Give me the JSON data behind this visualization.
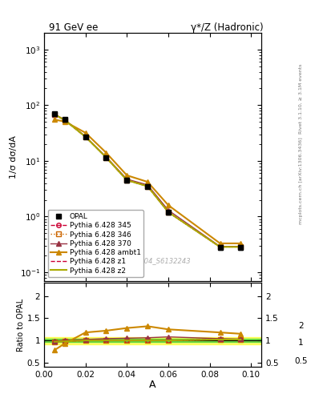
{
  "title_left": "91 GeV ee",
  "title_right": "γ*/Z (Hadronic)",
  "ylabel_main": "1/σ dσ/dA",
  "ylabel_ratio": "Ratio to OPAL",
  "xlabel": "A",
  "right_label_top": "Rivet 3.1.10, ≥ 3.1M events",
  "right_label_bottom": "mcplots.cern.ch [arXiv:1306.3436]",
  "watermark": "OPAL_2004_S6132243",
  "x_data": [
    0.005,
    0.01,
    0.02,
    0.03,
    0.04,
    0.05,
    0.06,
    0.085,
    0.095
  ],
  "opal_y": [
    70,
    55,
    27,
    11.5,
    4.5,
    3.5,
    1.2,
    0.28,
    0.28
  ],
  "opal_yerr": [
    5,
    4,
    2,
    0.8,
    0.4,
    0.3,
    0.1,
    0.03,
    0.03
  ],
  "py345_y": [
    68,
    54,
    27,
    11.5,
    4.5,
    3.5,
    1.2,
    0.285,
    0.285
  ],
  "py346_y": [
    68,
    54,
    27,
    11.5,
    4.5,
    3.5,
    1.2,
    0.285,
    0.285
  ],
  "py370_y": [
    69,
    55,
    27.5,
    11.8,
    4.7,
    3.7,
    1.3,
    0.29,
    0.29
  ],
  "pyambt1_y": [
    55,
    51,
    32,
    14,
    5.5,
    4.2,
    1.6,
    0.33,
    0.33
  ],
  "pyz1_y": [
    68,
    54,
    27,
    11.5,
    4.5,
    3.5,
    1.2,
    0.285,
    0.285
  ],
  "pyz2_y": [
    68,
    54,
    27,
    11.5,
    4.5,
    3.5,
    1.2,
    0.285,
    0.285
  ],
  "ratio_345": [
    0.97,
    0.98,
    1.0,
    1.0,
    1.0,
    1.0,
    1.0,
    1.02,
    1.02
  ],
  "ratio_346": [
    0.97,
    0.98,
    1.0,
    1.0,
    1.0,
    1.0,
    1.0,
    1.02,
    1.02
  ],
  "ratio_370": [
    0.98,
    1.0,
    1.02,
    1.04,
    1.05,
    1.06,
    1.08,
    1.04,
    1.03
  ],
  "ratio_ambt1": [
    0.78,
    0.93,
    1.18,
    1.22,
    1.28,
    1.32,
    1.25,
    1.18,
    1.15
  ],
  "ratio_z1": [
    0.97,
    0.98,
    1.0,
    1.0,
    1.0,
    1.0,
    1.0,
    1.02,
    1.02
  ],
  "ratio_z2": [
    0.97,
    0.98,
    1.0,
    1.0,
    1.0,
    1.0,
    1.0,
    1.02,
    1.02
  ],
  "color_345": "#cc0033",
  "color_346": "#cc6600",
  "color_370": "#993344",
  "color_ambt1": "#cc8800",
  "color_z1": "#cc0033",
  "color_z2": "#aaaa00",
  "band_yellow": [
    0.92,
    1.08
  ],
  "band_green": [
    0.96,
    1.04
  ],
  "ylim_main": [
    0.07,
    2000
  ],
  "ylim_ratio": [
    0.4,
    2.3
  ],
  "xlim": [
    0.0,
    0.105
  ]
}
